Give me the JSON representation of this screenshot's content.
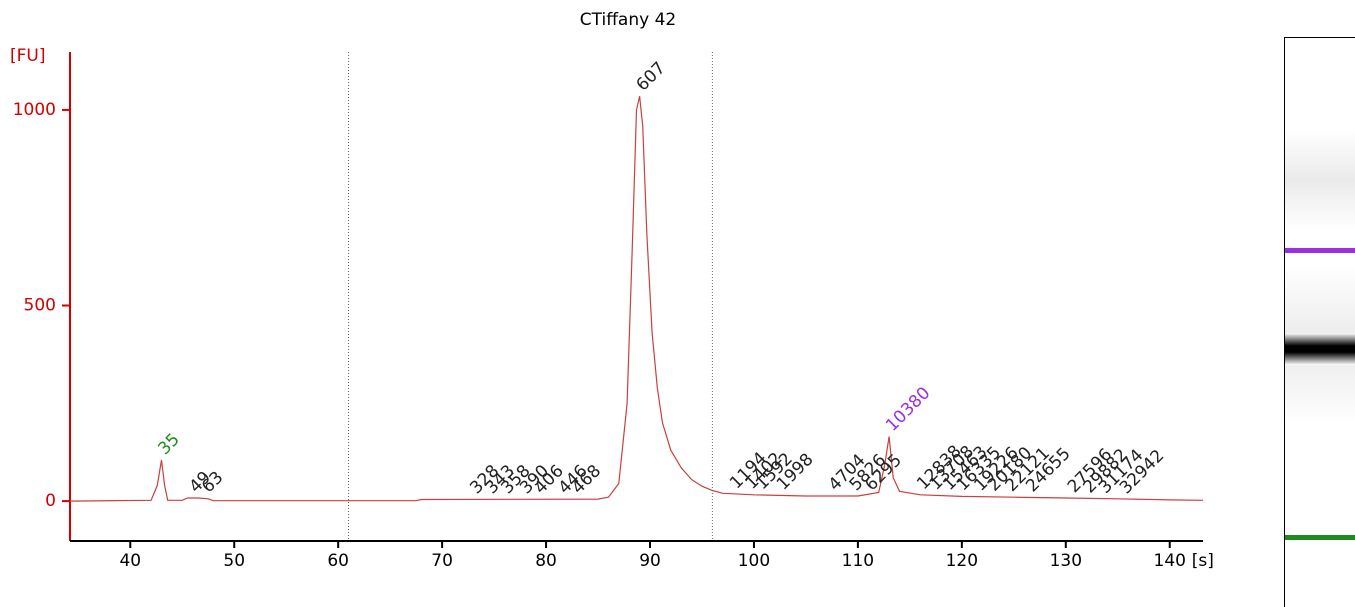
{
  "chart_data": {
    "type": "line",
    "title": "CTiffany 42",
    "y_label": "[FU]",
    "x_label": "[s]",
    "xlim": [
      34.2,
      143.2
    ],
    "ylim": [
      -102,
      1148
    ],
    "xticks": [
      40,
      50,
      60,
      70,
      80,
      90,
      100,
      110,
      120,
      130,
      140
    ],
    "yticks": [
      0,
      500,
      1000
    ],
    "axis_color": "#d40000",
    "vlines": [
      61,
      96
    ],
    "series": [
      {
        "name": "CTiffany 42",
        "color": "#c9403c",
        "x": [
          34.2,
          42,
          42.6,
          43,
          43.3,
          43.6,
          45,
          45.5,
          46.5,
          47.5,
          48,
          67.5,
          68,
          85,
          86,
          87,
          87.8,
          88.3,
          88.7,
          89,
          89.3,
          89.7,
          90.2,
          90.7,
          91.2,
          92,
          93,
          94,
          95,
          96,
          97,
          100,
          105,
          110,
          112,
          112.6,
          113,
          113.4,
          114,
          116,
          120,
          125,
          130,
          135,
          140,
          143.2
        ],
        "values": [
          0,
          2,
          40,
          105,
          40,
          2,
          2,
          8,
          8,
          6,
          1,
          1,
          4,
          5,
          10,
          45,
          250,
          650,
          1000,
          1035,
          960,
          680,
          430,
          290,
          200,
          130,
          85,
          55,
          38,
          27,
          20,
          16,
          13,
          13,
          22,
          95,
          165,
          60,
          25,
          16,
          12,
          10,
          8,
          6,
          3,
          2
        ]
      }
    ],
    "peaks": [
      {
        "label": 35,
        "x": 43,
        "y": 105,
        "color": "#1e8a1e"
      },
      {
        "label": 49,
        "x": 46,
        "y": 8,
        "color": "#222222"
      },
      {
        "label": 63,
        "x": 47.2,
        "y": 8,
        "color": "#222222"
      },
      {
        "label": 328,
        "x": 73,
        "y": 5,
        "color": "#222222"
      },
      {
        "label": 343,
        "x": 74.5,
        "y": 5,
        "color": "#222222"
      },
      {
        "label": 358,
        "x": 76,
        "y": 5,
        "color": "#222222"
      },
      {
        "label": 390,
        "x": 77.8,
        "y": 5,
        "color": "#222222"
      },
      {
        "label": 406,
        "x": 79.2,
        "y": 5,
        "color": "#222222"
      },
      {
        "label": 446,
        "x": 81.5,
        "y": 5,
        "color": "#222222"
      },
      {
        "label": 468,
        "x": 82.8,
        "y": 5,
        "color": "#222222"
      },
      {
        "label": 607,
        "x": 89,
        "y": 1035,
        "color": "#222222"
      },
      {
        "label": 1194,
        "x": 98,
        "y": 18,
        "color": "#222222"
      },
      {
        "label": 1402,
        "x": 99.5,
        "y": 17,
        "color": "#222222"
      },
      {
        "label": 1592,
        "x": 100.5,
        "y": 16,
        "color": "#222222"
      },
      {
        "label": 1998,
        "x": 102.5,
        "y": 15,
        "color": "#222222"
      },
      {
        "label": 4704,
        "x": 107.5,
        "y": 13,
        "color": "#222222"
      },
      {
        "label": 5826,
        "x": 109.5,
        "y": 13,
        "color": "#222222"
      },
      {
        "label": 6295,
        "x": 111,
        "y": 13,
        "color": "#222222"
      },
      {
        "label": 10380,
        "x": 113,
        "y": 165,
        "color": "#9b30e0"
      },
      {
        "label": 12838,
        "x": 116,
        "y": 16,
        "color": "#222222"
      },
      {
        "label": 13708,
        "x": 117.2,
        "y": 15,
        "color": "#222222"
      },
      {
        "label": 15463,
        "x": 118.5,
        "y": 14,
        "color": "#222222"
      },
      {
        "label": 16335,
        "x": 119.8,
        "y": 13,
        "color": "#222222"
      },
      {
        "label": 19226,
        "x": 121.5,
        "y": 12,
        "color": "#222222"
      },
      {
        "label": 20180,
        "x": 122.8,
        "y": 12,
        "color": "#222222"
      },
      {
        "label": 22121,
        "x": 124.5,
        "y": 11,
        "color": "#222222"
      },
      {
        "label": 24655,
        "x": 126.5,
        "y": 10,
        "color": "#222222"
      },
      {
        "label": 27596,
        "x": 130.5,
        "y": 8,
        "color": "#222222"
      },
      {
        "label": 29882,
        "x": 132,
        "y": 7,
        "color": "#222222"
      },
      {
        "label": 31174,
        "x": 133.5,
        "y": 6,
        "color": "#222222"
      },
      {
        "label": 32942,
        "x": 135.5,
        "y": 5,
        "color": "#222222"
      }
    ]
  }
}
